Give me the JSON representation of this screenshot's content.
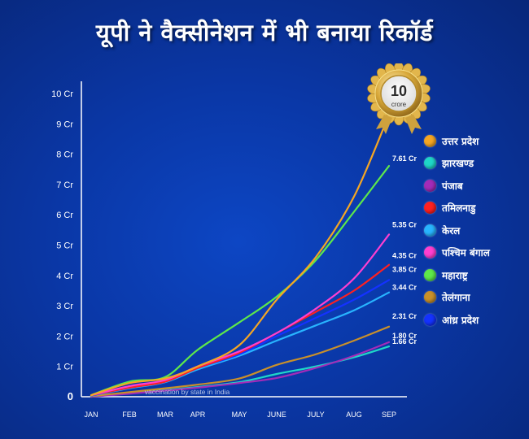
{
  "title": "यूपी ने वैक्सीनेशन में भी बनाया रिकॉर्ड",
  "badge": {
    "number": "10",
    "text": "crore"
  },
  "chart_data": {
    "type": "line",
    "title": "यूपी ने वैक्सीनेशन में भी बनाया रिकॉर्ड",
    "subtitle": "vaccination by state in India",
    "xlabel": "",
    "ylabel": "",
    "x": [
      "JAN",
      "FEB",
      "MAR",
      "APR",
      "MAY",
      "JUNE",
      "JULY",
      "AUG",
      "SEP"
    ],
    "y_ticks": [
      "0",
      "1 Cr",
      "2 Cr",
      "3 Cr",
      "4 Cr",
      "5 Cr",
      "6 Cr",
      "7 Cr",
      "8 Cr",
      "9 Cr",
      "10 Cr"
    ],
    "ylim": [
      0,
      10
    ],
    "grid": false,
    "legend_position": "right",
    "series": [
      {
        "name": "उत्तर प्रदेश",
        "color": "#f5a623",
        "end_label": "",
        "values": [
          0.05,
          0.45,
          0.6,
          1.0,
          1.7,
          3.2,
          4.6,
          6.6,
          9.3
        ]
      },
      {
        "name": "झारखण्ड",
        "color": "#1fd6c8",
        "end_label": "1.66 Cr",
        "values": [
          0.0,
          0.12,
          0.22,
          0.32,
          0.48,
          0.75,
          1.0,
          1.3,
          1.66
        ]
      },
      {
        "name": "पंजाब",
        "color": "#a32bb8",
        "end_label": "1.80 Cr",
        "values": [
          0.0,
          0.1,
          0.2,
          0.3,
          0.45,
          0.62,
          0.95,
          1.35,
          1.8
        ]
      },
      {
        "name": "तमिलनाडु",
        "color": "#ff2020",
        "end_label": "4.35 Cr",
        "values": [
          0.05,
          0.3,
          0.5,
          0.95,
          1.45,
          2.1,
          2.8,
          3.5,
          4.35
        ]
      },
      {
        "name": "केरल",
        "color": "#28b4ff",
        "end_label": "3.44 Cr",
        "values": [
          0.03,
          0.28,
          0.48,
          0.9,
          1.35,
          1.85,
          2.35,
          2.85,
          3.44
        ]
      },
      {
        "name": "पश्चिम बंगाल",
        "color": "#ff3fd0",
        "end_label": "5.35 Cr",
        "values": [
          0.05,
          0.35,
          0.55,
          1.0,
          1.5,
          2.1,
          2.9,
          3.9,
          5.35
        ]
      },
      {
        "name": "महाराष्ट्र",
        "color": "#5ee84a",
        "end_label": "7.61 Cr",
        "values": [
          0.05,
          0.5,
          0.65,
          1.55,
          2.45,
          3.3,
          4.5,
          6.1,
          7.61
        ]
      },
      {
        "name": "तेलंगाना",
        "color": "#c9902a",
        "end_label": "2.31 Cr",
        "values": [
          0.02,
          0.15,
          0.28,
          0.4,
          0.6,
          1.05,
          1.4,
          1.85,
          2.31
        ]
      },
      {
        "name": "आंध्र प्रदेश",
        "color": "#1432ff",
        "end_label": "3.85 Cr",
        "values": [
          0.04,
          0.3,
          0.5,
          0.95,
          1.4,
          2.0,
          2.6,
          3.2,
          3.85
        ]
      }
    ]
  }
}
